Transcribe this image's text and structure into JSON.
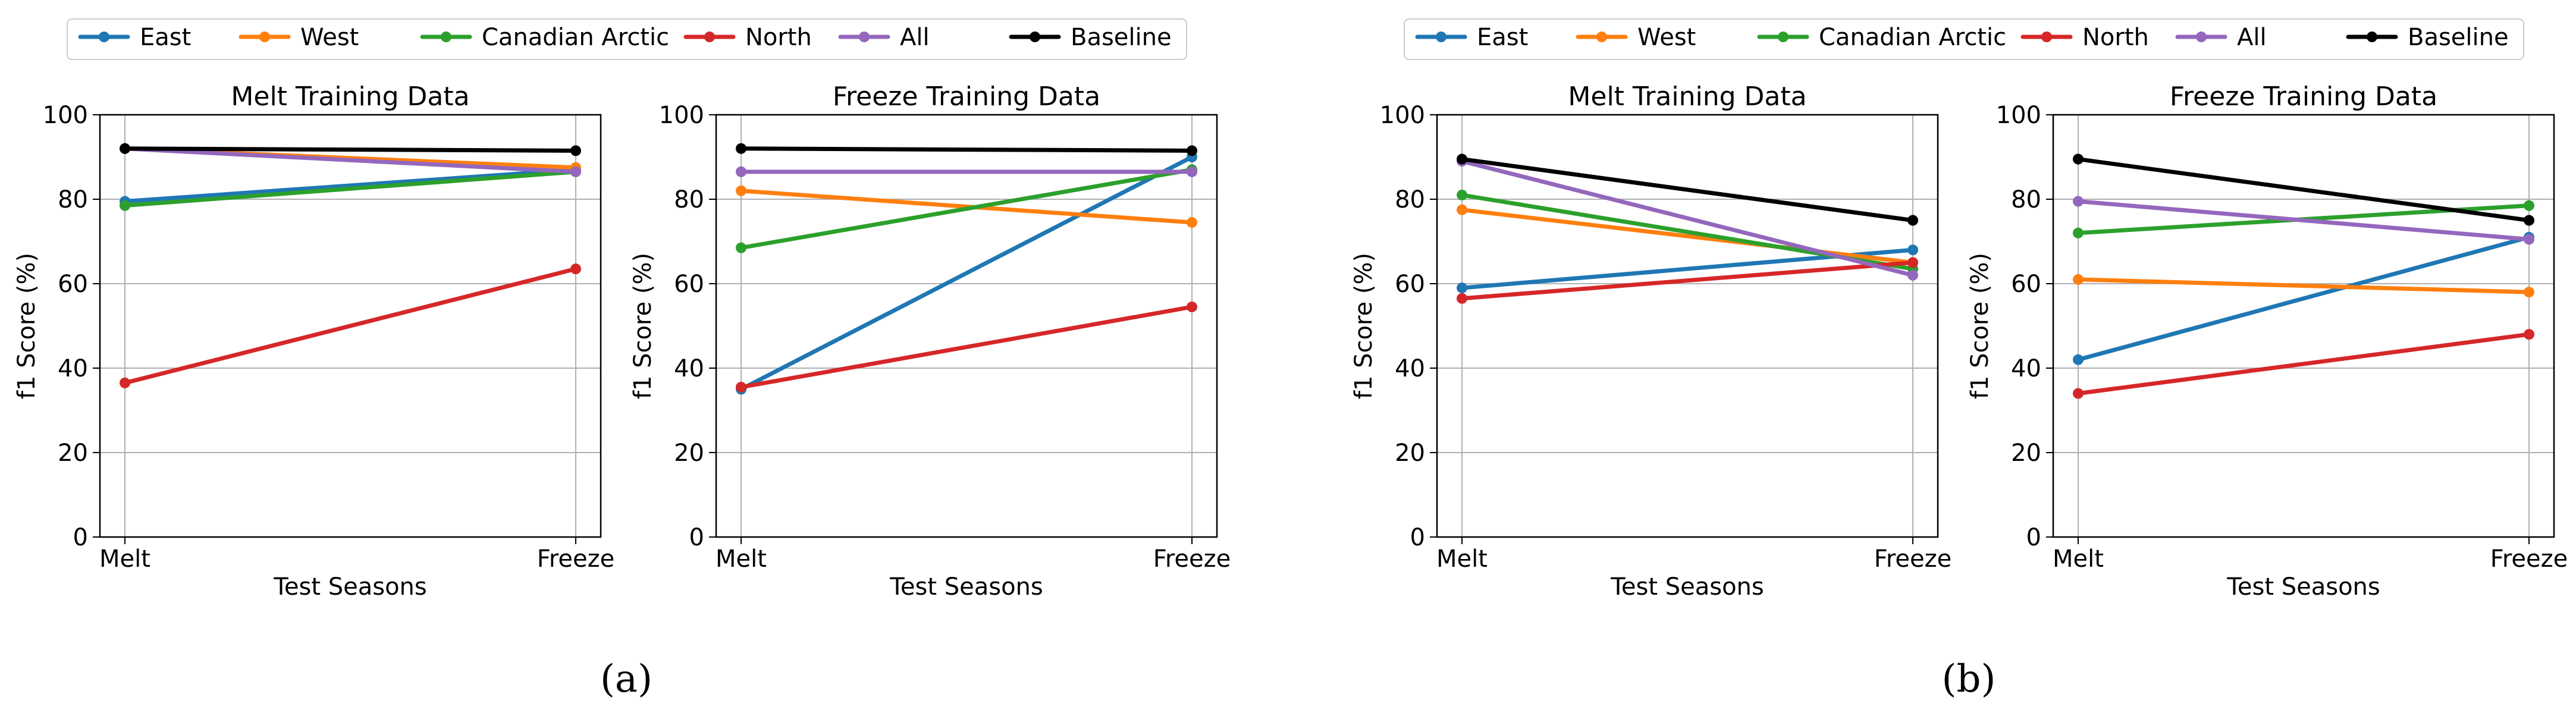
{
  "colors": {
    "east": "#1f77b4",
    "west": "#ff7f0e",
    "canadian_arctic": "#2ca02c",
    "north": "#d62728",
    "all": "#9467bd",
    "baseline": "#000000",
    "grid": "#b0b0b0",
    "axis": "#000000"
  },
  "legend_a": [
    "East",
    "West",
    "Canadian Arctic",
    "North",
    "All",
    "Baseline"
  ],
  "legend_b": [
    "East",
    "West",
    "Canadian Arctic",
    "North",
    "All",
    "Baseline"
  ],
  "captions": [
    "(a)",
    "(b)"
  ],
  "chart_data": [
    {
      "type": "line",
      "title": "Melt Training Data",
      "xlabel": "Test Seasons",
      "ylabel": "f1 Score (%)",
      "categories": [
        "Melt",
        "Freeze"
      ],
      "ylim": [
        0,
        100
      ],
      "yticks": [
        "0",
        "20",
        "40",
        "60",
        "80",
        "100"
      ],
      "grid": true,
      "series": [
        {
          "name": "East",
          "color": "#1f77b4",
          "values": [
            79.5,
            87
          ]
        },
        {
          "name": "West",
          "color": "#ff7f0e",
          "values": [
            92,
            87.5
          ]
        },
        {
          "name": "Canadian Arctic",
          "color": "#2ca02c",
          "values": [
            78.5,
            86.5
          ]
        },
        {
          "name": "North",
          "color": "#d62728",
          "values": [
            36.5,
            63.5
          ]
        },
        {
          "name": "All",
          "color": "#9467bd",
          "values": [
            92,
            86.5
          ]
        },
        {
          "name": "Baseline",
          "color": "#000000",
          "values": [
            92,
            91.5
          ]
        }
      ]
    },
    {
      "type": "line",
      "title": "Freeze Training Data",
      "xlabel": "Test Seasons",
      "ylabel": "f1 Score (%)",
      "categories": [
        "Melt",
        "Freeze"
      ],
      "ylim": [
        0,
        100
      ],
      "yticks": [
        "0",
        "20",
        "40",
        "60",
        "80",
        "100"
      ],
      "grid": true,
      "series": [
        {
          "name": "East",
          "color": "#1f77b4",
          "values": [
            35,
            90
          ]
        },
        {
          "name": "West",
          "color": "#ff7f0e",
          "values": [
            82,
            74.5
          ]
        },
        {
          "name": "Canadian Arctic",
          "color": "#2ca02c",
          "values": [
            68.5,
            87
          ]
        },
        {
          "name": "North",
          "color": "#d62728",
          "values": [
            35.5,
            54.5
          ]
        },
        {
          "name": "All",
          "color": "#9467bd",
          "values": [
            86.5,
            86.5
          ]
        },
        {
          "name": "Baseline",
          "color": "#000000",
          "values": [
            92,
            91.5
          ]
        }
      ]
    },
    {
      "type": "line",
      "title": "Melt Training Data",
      "xlabel": "Test Seasons",
      "ylabel": "f1 Score (%)",
      "categories": [
        "Melt",
        "Freeze"
      ],
      "ylim": [
        0,
        100
      ],
      "yticks": [
        "0",
        "20",
        "40",
        "60",
        "80",
        "100"
      ],
      "grid": true,
      "series": [
        {
          "name": "East",
          "color": "#1f77b4",
          "values": [
            59,
            68
          ]
        },
        {
          "name": "West",
          "color": "#ff7f0e",
          "values": [
            77.5,
            65
          ]
        },
        {
          "name": "Canadian Arctic",
          "color": "#2ca02c",
          "values": [
            81,
            63.5
          ]
        },
        {
          "name": "North",
          "color": "#d62728",
          "values": [
            56.5,
            65
          ]
        },
        {
          "name": "All",
          "color": "#9467bd",
          "values": [
            89,
            62
          ]
        },
        {
          "name": "Baseline",
          "color": "#000000",
          "values": [
            89.5,
            75
          ]
        }
      ]
    },
    {
      "type": "line",
      "title": "Freeze Training Data",
      "xlabel": "Test Seasons",
      "ylabel": "f1 Score (%)",
      "categories": [
        "Melt",
        "Freeze"
      ],
      "ylim": [
        0,
        100
      ],
      "yticks": [
        "0",
        "20",
        "40",
        "60",
        "80",
        "100"
      ],
      "grid": true,
      "series": [
        {
          "name": "East",
          "color": "#1f77b4",
          "values": [
            42,
            71
          ]
        },
        {
          "name": "West",
          "color": "#ff7f0e",
          "values": [
            61,
            58
          ]
        },
        {
          "name": "Canadian Arctic",
          "color": "#2ca02c",
          "values": [
            72,
            78.5
          ]
        },
        {
          "name": "North",
          "color": "#d62728",
          "values": [
            34,
            48
          ]
        },
        {
          "name": "All",
          "color": "#9467bd",
          "values": [
            79.5,
            70.5
          ]
        },
        {
          "name": "Baseline",
          "color": "#000000",
          "values": [
            89.5,
            75
          ]
        }
      ]
    }
  ]
}
